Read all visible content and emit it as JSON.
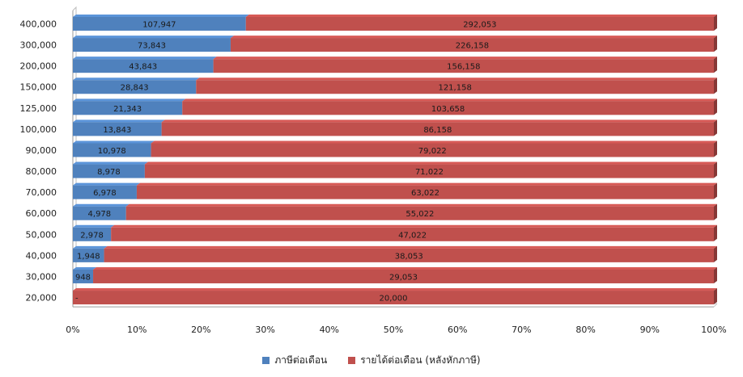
{
  "colors": {
    "tax": "#4f81bd",
    "income": "#c0504d"
  },
  "chart_data": {
    "type": "bar",
    "orientation": "horizontal",
    "stacked": "percent",
    "categories": [
      "400,000",
      "300,000",
      "200,000",
      "150,000",
      "125,000",
      "100,000",
      "90,000",
      "80,000",
      "70,000",
      "60,000",
      "50,000",
      "40,000",
      "30,000",
      "20,000"
    ],
    "series": [
      {
        "name": "ภาษีต่อเดือน",
        "values": [
          107947,
          73843,
          43843,
          28843,
          21343,
          13843,
          10978,
          8978,
          6978,
          4978,
          2978,
          1948,
          948,
          0
        ],
        "labels": [
          "107,947",
          "73,843",
          "43,843",
          "28,843",
          "21,343",
          "13,843",
          "10,978",
          "8,978",
          "6,978",
          "4,978",
          "2,978",
          "1,948",
          "948",
          "-"
        ]
      },
      {
        "name": "รายได้ต่อเดือน (หลังหักภาษี)",
        "values": [
          292053,
          226158,
          156158,
          121158,
          103658,
          86158,
          79022,
          71022,
          63022,
          55022,
          47022,
          38053,
          29053,
          20000
        ],
        "labels": [
          "292,053",
          "226,158",
          "156,158",
          "121,158",
          "103,658",
          "86,158",
          "79,022",
          "71,022",
          "63,022",
          "55,022",
          "47,022",
          "38,053",
          "29,053",
          "20,000"
        ]
      }
    ],
    "x_ticks": [
      "0%",
      "10%",
      "20%",
      "30%",
      "40%",
      "50%",
      "60%",
      "70%",
      "80%",
      "90%",
      "100%"
    ],
    "xlim": [
      0,
      100
    ],
    "grid": false,
    "legend_position": "bottom"
  }
}
